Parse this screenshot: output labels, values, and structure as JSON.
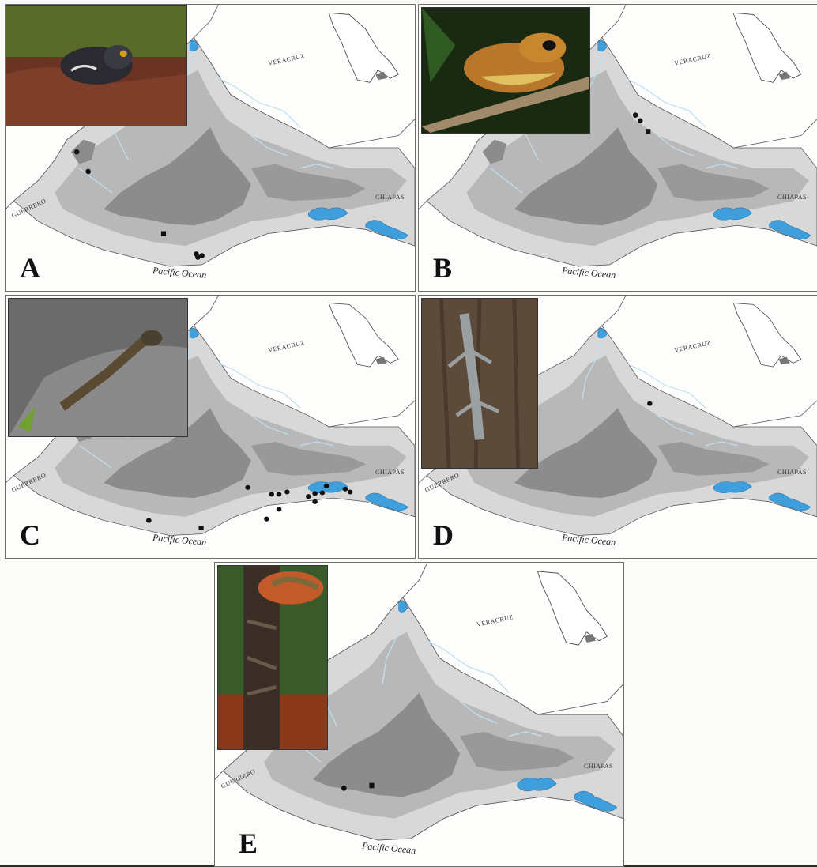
{
  "panels": [
    {
      "id": "A",
      "label": "A",
      "state_west": "GUERRERO",
      "state_north": "VERACRUZ",
      "state_east": "CHIAPAS",
      "ocean": "Pacific Ocean",
      "photo": "toad-photo"
    },
    {
      "id": "B",
      "label": "B",
      "state_west": "",
      "state_north": "VERACRUZ",
      "state_east": "CHIAPAS",
      "ocean": "Pacific Ocean",
      "photo": "treefrog-photo"
    },
    {
      "id": "C",
      "label": "C",
      "state_west": "GUERRERO",
      "state_north": "VERACRUZ",
      "state_east": "CHIAPAS",
      "ocean": "Pacific Ocean",
      "photo": "spiny-iguana-photo"
    },
    {
      "id": "D",
      "label": "D",
      "state_west": "GUERRERO",
      "state_north": "VERACRUZ",
      "state_east": "CHIAPAS",
      "ocean": "Pacific Ocean",
      "photo": "anole-photo"
    },
    {
      "id": "E",
      "label": "E",
      "state_west": "GUERRERO",
      "state_north": "VERACRUZ",
      "state_east": "CHIAPAS",
      "ocean": "Pacific Ocean",
      "photo": "tree-lizard-photo"
    }
  ],
  "legend_symbols": {
    "locality": "circle",
    "type_locality": "square"
  },
  "colors": {
    "lagoon": "#3f9fdc",
    "relief_dark": "#8c8c8c",
    "relief_mid": "#b8b8b8",
    "relief_light": "#d8d8d8",
    "marker": "#111111"
  }
}
